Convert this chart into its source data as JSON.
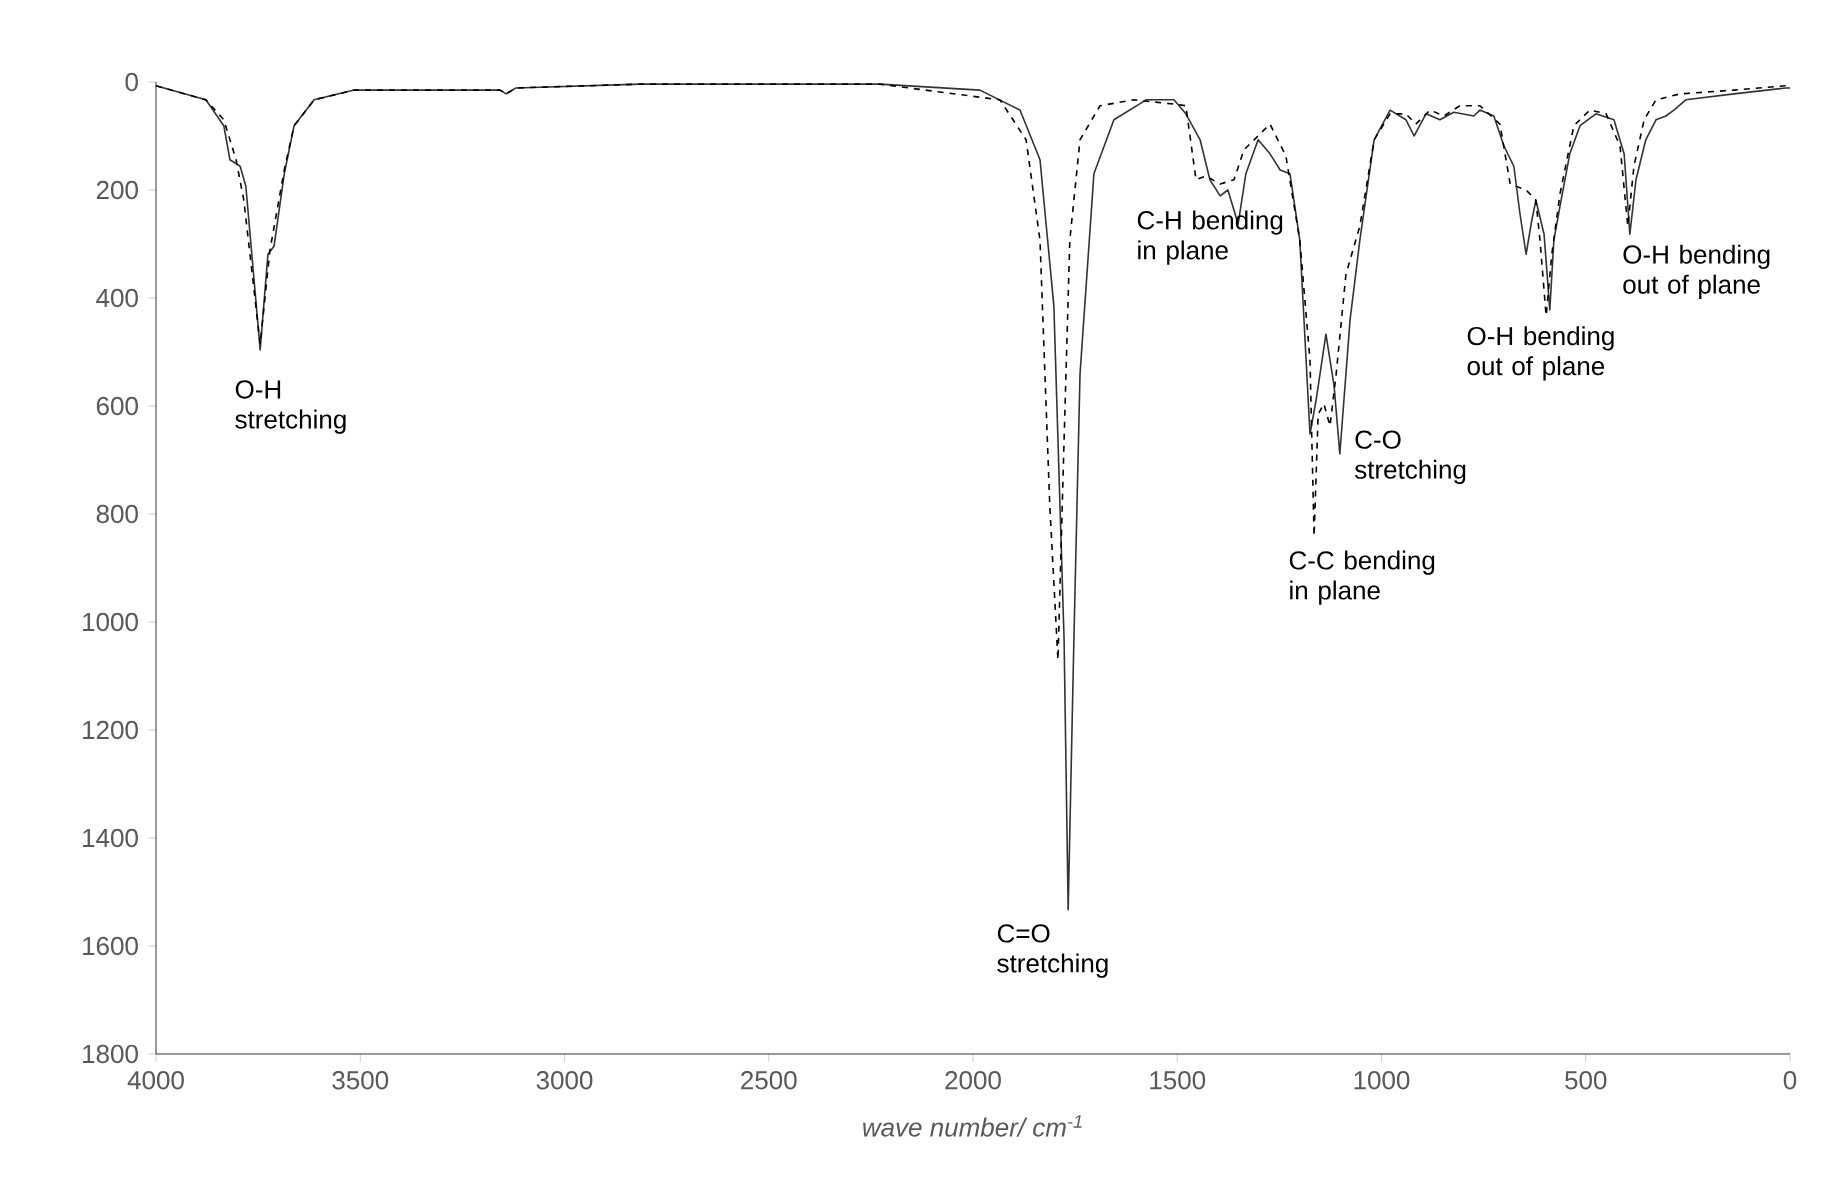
{
  "chart_data": {
    "type": "line",
    "xlabel": "wave number/ cm$^{-1}$",
    "xlim": [
      4000,
      0
    ],
    "ylim": [
      1800,
      0
    ],
    "xticks": [
      4000,
      3500,
      3000,
      2500,
      2000,
      1500,
      1000,
      500,
      0
    ],
    "yticks": [
      0,
      200,
      400,
      600,
      800,
      1000,
      1200,
      1400,
      1600,
      1800
    ],
    "marker": "none",
    "series": [
      {
        "color": "#333333",
        "line_style": "solid",
        "x": [
          4000,
          3878,
          3834,
          3819,
          3794,
          3780,
          3745,
          3726,
          3711,
          3686,
          3662,
          3613,
          3515,
          3158,
          3143,
          3119,
          2815,
          2228,
          1983,
          1885,
          1836,
          1802,
          1777,
          1767,
          1753,
          1738,
          1704,
          1655,
          1576,
          1508,
          1479,
          1444,
          1420,
          1395,
          1376,
          1351,
          1332,
          1302,
          1273,
          1248,
          1224,
          1200,
          1175,
          1160,
          1136,
          1116,
          1102,
          1077,
          1053,
          1018,
          979,
          940,
          920,
          891,
          857,
          823,
          774,
          759,
          725,
          700,
          676,
          661,
          646,
          632,
          622,
          602,
          588,
          578,
          563,
          539,
          514,
          475,
          431,
          406,
          392,
          377,
          353,
          328,
          304,
          284,
          255,
          137,
          10,
          0
        ],
        "values": [
          7,
          33,
          81,
          144,
          156,
          193,
          496,
          319,
          304,
          170,
          81,
          33,
          15,
          15,
          22,
          11,
          4,
          4,
          15,
          52,
          144,
          415,
          1033,
          1533,
          1033,
          541,
          170,
          70,
          33,
          33,
          59,
          107,
          181,
          211,
          200,
          263,
          170,
          107,
          133,
          163,
          170,
          293,
          652,
          589,
          467,
          563,
          689,
          441,
          293,
          107,
          52,
          70,
          100,
          59,
          70,
          56,
          63,
          52,
          63,
          119,
          156,
          244,
          319,
          256,
          219,
          282,
          422,
          293,
          230,
          133,
          81,
          59,
          70,
          133,
          282,
          181,
          107,
          70,
          63,
          52,
          33,
          22,
          11,
          11
        ]
      },
      {
        "color": "#000000",
        "line_style": "dashed",
        "x": [
          4000,
          3878,
          3834,
          3804,
          3785,
          3745,
          3721,
          3686,
          3662,
          3613,
          3515,
          3158,
          3143,
          3119,
          2815,
          2228,
          1934,
          1870,
          1836,
          1812,
          1792,
          1777,
          1763,
          1738,
          1689,
          1606,
          1508,
          1479,
          1454,
          1430,
          1395,
          1361,
          1337,
          1273,
          1234,
          1200,
          1175,
          1165,
          1155,
          1141,
          1126,
          1111,
          1087,
          1053,
          1018,
          979,
          940,
          916,
          881,
          847,
          808,
          759,
          710,
          685,
          646,
          622,
          612,
          597,
          583,
          563,
          529,
          490,
          450,
          416,
          397,
          382,
          357,
          328,
          269,
          137,
          10,
          0
        ],
        "values": [
          7,
          33,
          70,
          144,
          219,
          485,
          311,
          163,
          81,
          33,
          15,
          15,
          22,
          11,
          4,
          4,
          33,
          107,
          293,
          785,
          1070,
          663,
          293,
          107,
          44,
          33,
          41,
          44,
          181,
          174,
          189,
          181,
          126,
          78,
          137,
          293,
          515,
          841,
          615,
          596,
          637,
          541,
          356,
          267,
          107,
          59,
          59,
          78,
          52,
          63,
          44,
          44,
          78,
          189,
          200,
          219,
          293,
          433,
          319,
          207,
          81,
          52,
          59,
          119,
          267,
          156,
          70,
          33,
          22,
          15,
          7,
          7
        ]
      }
    ],
    "annotations": [
      {
        "text": "O-H stretching",
        "x": 3745,
        "y": 496
      },
      {
        "text": "C=O stretching",
        "x": 1767,
        "y": 1533
      },
      {
        "text": "C-H bending in plane",
        "x": 1351,
        "y": 263
      },
      {
        "text": "C-C bending in plane",
        "x": 1165,
        "y": 841
      },
      {
        "text": "C-O stretching",
        "x": 1102,
        "y": 689
      },
      {
        "text": "O-H bending out of plane",
        "x": 597,
        "y": 433
      },
      {
        "text": "O-H bending out of plane",
        "x": 392,
        "y": 282
      }
    ]
  }
}
